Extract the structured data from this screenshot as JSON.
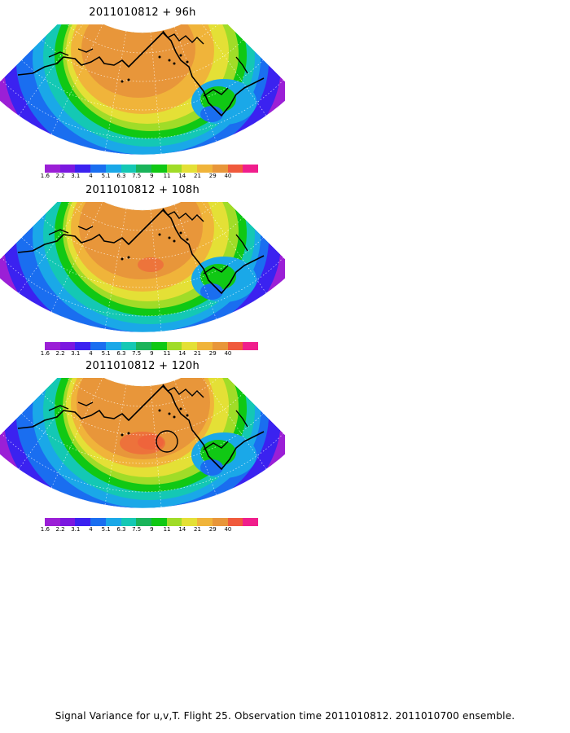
{
  "panels": [
    {
      "title": "2011010812  +  96h",
      "circle": false
    },
    {
      "title": "2011010812  +  108h",
      "circle": false
    },
    {
      "title": "2011010812  +  120h",
      "circle": true
    }
  ],
  "legend": {
    "colors": [
      "#9b1fd6",
      "#7b18e0",
      "#3b22f0",
      "#1a6ef0",
      "#1aa8e8",
      "#14c8b4",
      "#1ab45a",
      "#10c814",
      "#a0dc28",
      "#e4e036",
      "#f0b43a",
      "#e8963a",
      "#f05a3c",
      "#f01e8c"
    ],
    "labels": [
      "1.6",
      "2.2",
      "3.1",
      "4",
      "5.1",
      "6.3",
      "7.5",
      "9",
      "11",
      "14",
      "21",
      "29",
      "40"
    ]
  },
  "caption": "Signal Variance for u,v,T. Flight 25. Observation time 2011010812. 2011010700 ensemble."
}
